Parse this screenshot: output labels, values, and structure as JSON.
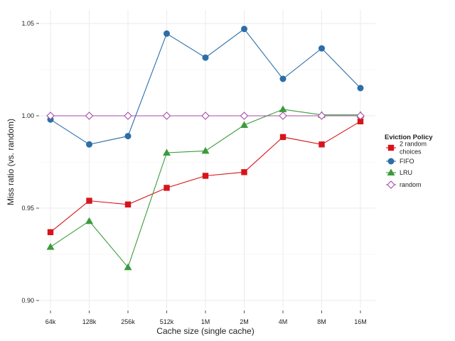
{
  "chart_data": {
    "type": "line",
    "xlabel": "Cache size (single cache)",
    "ylabel": "Miss ratio (vs. random)",
    "categories": [
      "64k",
      "128k",
      "256k",
      "512k",
      "1M",
      "2M",
      "4M",
      "8M",
      "16M"
    ],
    "ylim": [
      0.895,
      1.06
    ],
    "yticks": [
      0.9,
      0.95,
      1.0,
      1.05
    ],
    "ytick_labels": [
      "0.90",
      "0.95",
      "1.00",
      "1.05"
    ],
    "grid": true,
    "legend": {
      "title": "Eviction Policy",
      "placement": "right"
    },
    "series": [
      {
        "name": "2 random choices",
        "name_lines": [
          "2 random",
          "choices"
        ],
        "color": "#d7141a",
        "marker": "square",
        "values": [
          0.937,
          0.954,
          0.952,
          0.961,
          0.9675,
          0.9695,
          0.9885,
          0.9845,
          0.997
        ]
      },
      {
        "name": "FIFO",
        "name_lines": [
          "FIFO"
        ],
        "color": "#2c6ea8",
        "marker": "circle",
        "values": [
          0.998,
          0.9845,
          0.989,
          1.0445,
          1.0315,
          1.047,
          1.02,
          1.0365,
          1.015
        ]
      },
      {
        "name": "LRU",
        "name_lines": [
          "LRU"
        ],
        "color": "#3b9b3b",
        "marker": "triangle",
        "values": [
          0.929,
          0.943,
          0.918,
          0.98,
          0.981,
          0.995,
          1.0035,
          1.0005,
          1.0005
        ]
      },
      {
        "name": "random",
        "name_lines": [
          "random"
        ],
        "color": "#a54ba7",
        "marker": "diamond-open",
        "values": [
          1.0,
          1.0,
          1.0,
          1.0,
          1.0,
          1.0,
          1.0,
          1.0,
          1.0
        ]
      }
    ]
  }
}
